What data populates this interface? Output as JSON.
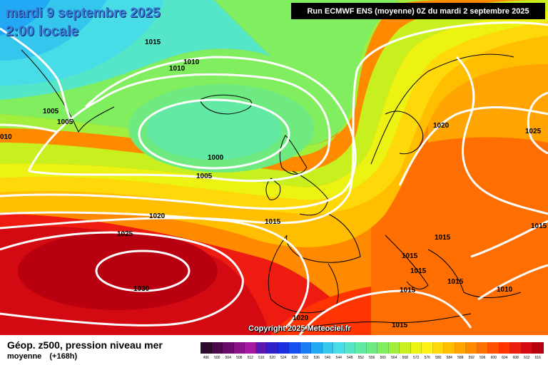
{
  "header": {
    "date_line_1": "mardi 9 septembre 2025",
    "date_line_2": "2:00 locale",
    "run_info": "Run ECMWF ENS (moyenne) 0Z du mardi 2 septembre 2025"
  },
  "copyright": "Copyright 2025 Meteociel.fr",
  "footer": {
    "title": "Géop. z500, pression niveau mer",
    "subtitle_1": "moyenne",
    "subtitle_2": "(+168h)"
  },
  "colors": {
    "isobar": "#ffffff",
    "scale": [
      "#2b0b2b",
      "#4a0a4a",
      "#6a0a6a",
      "#8a128a",
      "#a61aa6",
      "#5a18b0",
      "#3020c8",
      "#1a2ee0",
      "#1450f0",
      "#1a7cf5",
      "#22a8f5",
      "#35c6ee",
      "#48dce6",
      "#55e6c8",
      "#62eaa4",
      "#6eea80",
      "#80ee5e",
      "#a2ee3c",
      "#c8f01e",
      "#ecf212",
      "#fff016",
      "#ffd80a",
      "#ffbf00",
      "#ffa400",
      "#ff8a00",
      "#ff6e00",
      "#ff5200",
      "#ff3400",
      "#ee1c10",
      "#d40a12",
      "#b80010",
      "#980008",
      "#780006",
      "#560004",
      "#300000",
      "#000000"
    ]
  },
  "scale_labels": [
    "496",
    "500",
    "504",
    "508",
    "512",
    "516",
    "520",
    "524",
    "528",
    "532",
    "536",
    "540",
    "544",
    "548",
    "552",
    "556",
    "560",
    "564",
    "568",
    "572",
    "576",
    "580",
    "584",
    "588",
    "592",
    "596",
    "600",
    "604",
    "608",
    "612",
    "616"
  ],
  "isobar_labels": [
    {
      "text": "1015"
    },
    {
      "text": "1010"
    },
    {
      "text": "1010"
    },
    {
      "text": "1005"
    },
    {
      "text": "1005"
    },
    {
      "text": "010"
    },
    {
      "text": "1000"
    },
    {
      "text": "1005"
    },
    {
      "text": "1020"
    },
    {
      "text": "1025"
    },
    {
      "text": "1030"
    },
    {
      "text": "1015"
    },
    {
      "text": "1020"
    },
    {
      "text": "1025"
    },
    {
      "text": "1015"
    },
    {
      "text": "1015"
    },
    {
      "text": "1015"
    },
    {
      "text": "1015"
    },
    {
      "text": "1015"
    },
    {
      "text": "1010"
    },
    {
      "text": "1015"
    },
    {
      "text": "1015"
    },
    {
      "text": "1020"
    },
    {
      "text": "1015"
    }
  ]
}
